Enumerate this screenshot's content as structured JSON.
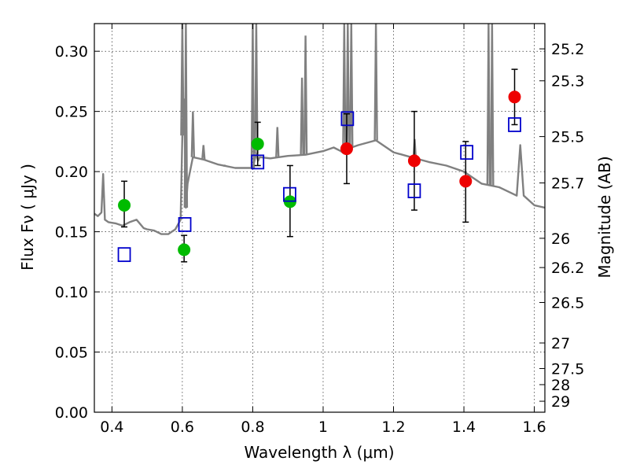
{
  "chart_data": {
    "type": "scatter",
    "xlabel": "Wavelength  λ (μm)",
    "ylabel": "Flux  Fν  ( μJy )",
    "y2label": "Magnitude (AB)",
    "xlim": [
      0.35,
      1.63
    ],
    "ylim": [
      0.0,
      0.323
    ],
    "x_ticks": [
      "0.4",
      "0.6",
      "0.8",
      "1",
      "1.2",
      "1.4",
      "1.6"
    ],
    "x_tick_values": [
      0.4,
      0.6,
      0.8,
      1.0,
      1.2,
      1.4,
      1.6
    ],
    "y_ticks": [
      "0.00",
      "0.05",
      "0.10",
      "0.15",
      "0.20",
      "0.25",
      "0.30"
    ],
    "y_tick_values": [
      0.0,
      0.05,
      0.1,
      0.15,
      0.2,
      0.25,
      0.3
    ],
    "y2_ticks": [
      "25.2",
      "25.3",
      "25.5",
      "25.7",
      "26",
      "26.2",
      "26.5",
      "27",
      "27.5",
      "28",
      "29"
    ],
    "y2_tick_values": [
      25.2,
      25.3,
      25.5,
      25.7,
      26.0,
      26.2,
      26.5,
      27.0,
      27.5,
      28.0,
      29.0
    ],
    "grid": true,
    "colors": {
      "model": "#808080",
      "green_points": "#00bb00",
      "red_points": "#ee0000",
      "blue_squares": "#0000cc",
      "error_bars": "#000000"
    },
    "model_spectrum": {
      "x": [
        0.35,
        0.36,
        0.37,
        0.375,
        0.38,
        0.39,
        0.41,
        0.43,
        0.45,
        0.47,
        0.49,
        0.5,
        0.52,
        0.54,
        0.56,
        0.58,
        0.595,
        0.6,
        0.605,
        0.61,
        0.615,
        0.63,
        0.66,
        0.7,
        0.75,
        0.8,
        0.81,
        0.815,
        0.82,
        0.85,
        0.9,
        0.95,
        1.0,
        1.03,
        1.05,
        1.06,
        1.07,
        1.1,
        1.15,
        1.2,
        1.25,
        1.3,
        1.35,
        1.4,
        1.45,
        1.5,
        1.55,
        1.56,
        1.57,
        1.6,
        1.63
      ],
      "y": [
        0.165,
        0.163,
        0.166,
        0.198,
        0.16,
        0.158,
        0.157,
        0.155,
        0.158,
        0.16,
        0.153,
        0.152,
        0.151,
        0.148,
        0.148,
        0.152,
        0.16,
        0.23,
        0.26,
        0.17,
        0.19,
        0.212,
        0.21,
        0.206,
        0.203,
        0.203,
        0.215,
        0.209,
        0.212,
        0.211,
        0.213,
        0.214,
        0.217,
        0.22,
        0.217,
        0.215,
        0.219,
        0.222,
        0.226,
        0.216,
        0.212,
        0.208,
        0.205,
        0.2,
        0.19,
        0.187,
        0.18,
        0.222,
        0.18,
        0.172,
        0.17
      ]
    },
    "model_emission_lines": [
      {
        "x": 0.6,
        "peak": 0.323
      },
      {
        "x": 0.61,
        "peak": 0.323
      },
      {
        "x": 0.63,
        "peak": 0.25
      },
      {
        "x": 0.66,
        "peak": 0.222
      },
      {
        "x": 0.72,
        "peak": 0.205
      },
      {
        "x": 0.8,
        "peak": 0.323
      },
      {
        "x": 0.81,
        "peak": 0.323
      },
      {
        "x": 0.87,
        "peak": 0.237
      },
      {
        "x": 0.94,
        "peak": 0.278
      },
      {
        "x": 0.95,
        "peak": 0.313
      },
      {
        "x": 1.06,
        "peak": 0.323
      },
      {
        "x": 1.07,
        "peak": 0.323
      },
      {
        "x": 1.08,
        "peak": 0.323
      },
      {
        "x": 1.15,
        "peak": 0.323
      },
      {
        "x": 1.26,
        "peak": 0.227
      },
      {
        "x": 1.47,
        "peak": 0.323
      },
      {
        "x": 1.48,
        "peak": 0.323
      }
    ],
    "series": [
      {
        "marker": "filled-circle",
        "color": "#00bb00",
        "points": [
          {
            "x": 0.435,
            "y": 0.172,
            "err_low": 0.154,
            "err_high": 0.192
          },
          {
            "x": 0.605,
            "y": 0.135,
            "err_low": 0.125,
            "err_high": 0.147
          },
          {
            "x": 0.814,
            "y": 0.223,
            "err_low": 0.205,
            "err_high": 0.241
          },
          {
            "x": 0.906,
            "y": 0.175,
            "err_low": 0.146,
            "err_high": 0.205
          }
        ]
      },
      {
        "marker": "filled-circle",
        "color": "#ee0000",
        "points": [
          {
            "x": 1.067,
            "y": 0.219,
            "err_low": 0.19,
            "err_high": 0.248
          },
          {
            "x": 1.259,
            "y": 0.209,
            "err_low": 0.168,
            "err_high": 0.25
          },
          {
            "x": 1.405,
            "y": 0.192,
            "err_low": 0.158,
            "err_high": 0.225
          },
          {
            "x": 1.544,
            "y": 0.262,
            "err_low": 0.239,
            "err_high": 0.285
          }
        ]
      },
      {
        "marker": "open-square",
        "color": "#0000cc",
        "points": [
          {
            "x": 0.435,
            "y": 0.131
          },
          {
            "x": 0.607,
            "y": 0.156
          },
          {
            "x": 0.814,
            "y": 0.208
          },
          {
            "x": 0.905,
            "y": 0.181
          },
          {
            "x": 1.069,
            "y": 0.244
          },
          {
            "x": 1.259,
            "y": 0.184
          },
          {
            "x": 1.408,
            "y": 0.216
          },
          {
            "x": 1.544,
            "y": 0.239
          }
        ]
      }
    ]
  }
}
